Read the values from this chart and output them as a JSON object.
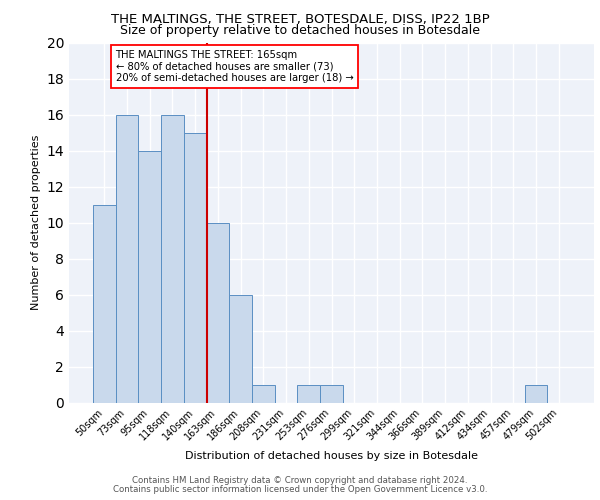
{
  "title1": "THE MALTINGS, THE STREET, BOTESDALE, DISS, IP22 1BP",
  "title2": "Size of property relative to detached houses in Botesdale",
  "xlabel": "Distribution of detached houses by size in Botesdale",
  "ylabel": "Number of detached properties",
  "bar_labels": [
    "50sqm",
    "73sqm",
    "95sqm",
    "118sqm",
    "140sqm",
    "163sqm",
    "186sqm",
    "208sqm",
    "231sqm",
    "253sqm",
    "276sqm",
    "299sqm",
    "321sqm",
    "344sqm",
    "366sqm",
    "389sqm",
    "412sqm",
    "434sqm",
    "457sqm",
    "479sqm",
    "502sqm"
  ],
  "bar_values": [
    11,
    16,
    14,
    16,
    15,
    10,
    6,
    1,
    0,
    1,
    1,
    0,
    0,
    0,
    0,
    0,
    0,
    0,
    0,
    1,
    0
  ],
  "bar_color": "#c9d9ec",
  "bar_edge_color": "#5a8fc3",
  "vline_color": "#cc0000",
  "vline_x_index": 5,
  "annotation_text": "THE MALTINGS THE STREET: 165sqm\n← 80% of detached houses are smaller (73)\n20% of semi-detached houses are larger (18) →",
  "ylim": [
    0,
    20
  ],
  "yticks": [
    0,
    2,
    4,
    6,
    8,
    10,
    12,
    14,
    16,
    18,
    20
  ],
  "footer1": "Contains HM Land Registry data © Crown copyright and database right 2024.",
  "footer2": "Contains public sector information licensed under the Open Government Licence v3.0.",
  "bg_color": "#eef2f9",
  "grid_color": "#ffffff"
}
